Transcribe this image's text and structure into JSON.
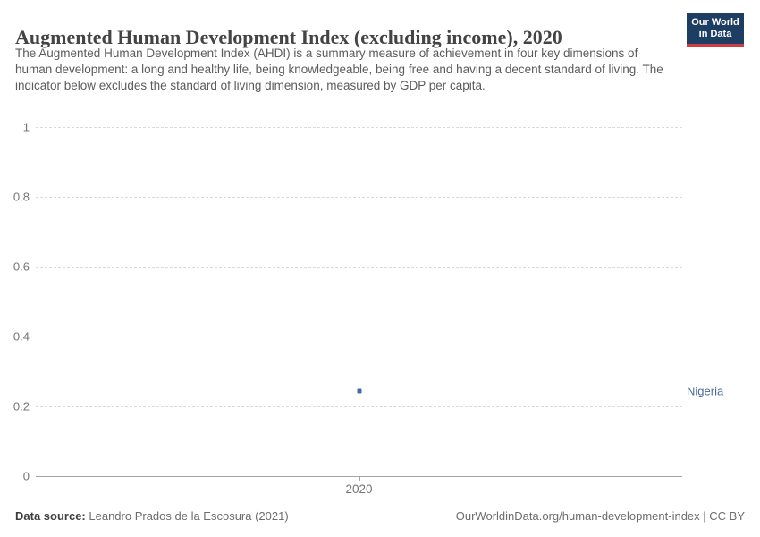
{
  "header": {
    "title": "Augmented Human Development Index (excluding income), 2020",
    "subtitle": "The Augmented Human Development Index (AHDI) is a summary measure of achievement in four key dimensions of human development: a long and healthy life, being knowledgeable, being free and having a decent standard of living. The indicator below excludes the standard of living dimension, measured by GDP per capita.",
    "logo": {
      "line1": "Our World",
      "line2": "in Data",
      "bg_color": "#1d3d63",
      "stripe_color": "#cf3d44"
    }
  },
  "chart_data": {
    "type": "scatter",
    "title": "Augmented Human Development Index (excluding income), 2020",
    "x": [
      2020
    ],
    "xtick_labels": [
      "2020"
    ],
    "series": [
      {
        "name": "Nigeria",
        "values": [
          0.244
        ],
        "color": "#3e6aad",
        "label_color": "#4c6a9f"
      }
    ],
    "xlabel": "",
    "ylabel": "",
    "ylim": [
      0,
      1
    ],
    "yticks": [
      {
        "value": 0,
        "label": "0"
      },
      {
        "value": 0.2,
        "label": "0.2"
      },
      {
        "value": 0.4,
        "label": "0.4"
      },
      {
        "value": 0.6,
        "label": "0.6"
      },
      {
        "value": 0.8,
        "label": "0.8"
      },
      {
        "value": 1,
        "label": "1"
      }
    ],
    "grid": "horizontal-dashed",
    "gridline_color": "#dadada",
    "axis_color": "#a5a5a5",
    "legend_position": "entity-label-right"
  },
  "footer": {
    "datasource_label": "Data source:",
    "datasource_value": "Leandro Prados de la Escosura (2021)",
    "attribution": "OurWorldinData.org/human-development-index | CC BY"
  }
}
